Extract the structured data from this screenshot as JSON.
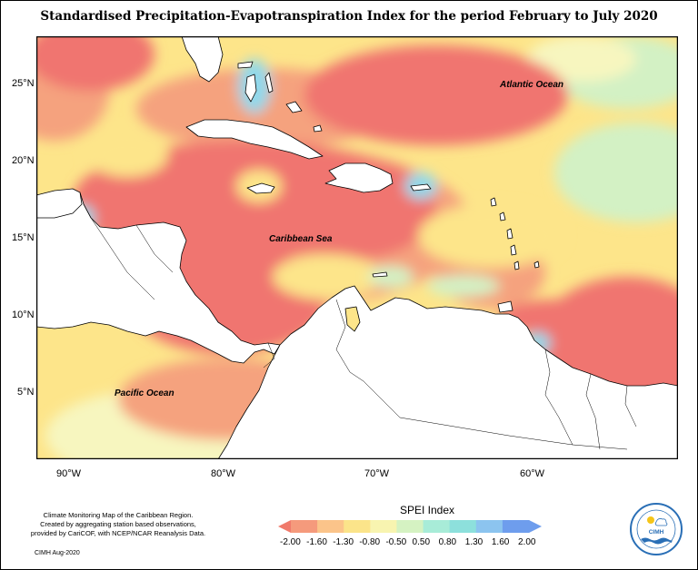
{
  "title": "Standardised Precipitation-Evapotranspiration Index for the period February to July 2020",
  "axes": {
    "lat_labels": [
      "25°N",
      "20°N",
      "15°N",
      "10°N",
      "5°N"
    ],
    "lon_labels": [
      "90°W",
      "80°W",
      "70°W",
      "60°W"
    ]
  },
  "ocean_labels": {
    "atlantic": "Atlantic Ocean",
    "caribbean": "Caribbean Sea",
    "pacific": "Pacific Ocean"
  },
  "footnote": {
    "line1": "Climate Monitoring Map of the Caribbean Region.",
    "line2": "Created by aggregating station based observations,",
    "line3": "provided by CariCOF, with NCEP/NCAR Reanalysis Data.",
    "credit": "CIMH Aug-2020"
  },
  "legend": {
    "title": "SPEI Index",
    "labels": [
      "-2.00",
      "-1.60",
      "-1.30",
      "-0.80",
      "-0.50",
      "0.50",
      "0.80",
      "1.30",
      "1.60",
      "2.00"
    ],
    "colors": [
      "#f07a6b",
      "#f59a7c",
      "#fbc48a",
      "#fbe48a",
      "#f8f4b0",
      "#d5f2c2",
      "#a8ecd8",
      "#8de0dc",
      "#8cc4ef",
      "#6e9ded"
    ]
  },
  "logo": {
    "text": "CIMH",
    "ring_text": "CARIBBEAN INSTITUTE FOR METEOROLOGY AND HYDROLOGY"
  },
  "colors": {
    "dry": "#f07470",
    "moderately_dry": "#f5a27e",
    "slightly_dry": "#fde58a",
    "near_normal": "#f7f6bf",
    "slightly_wet": "#d3f1c4",
    "wet": "#8fd9ec",
    "land": "#ffffff"
  }
}
